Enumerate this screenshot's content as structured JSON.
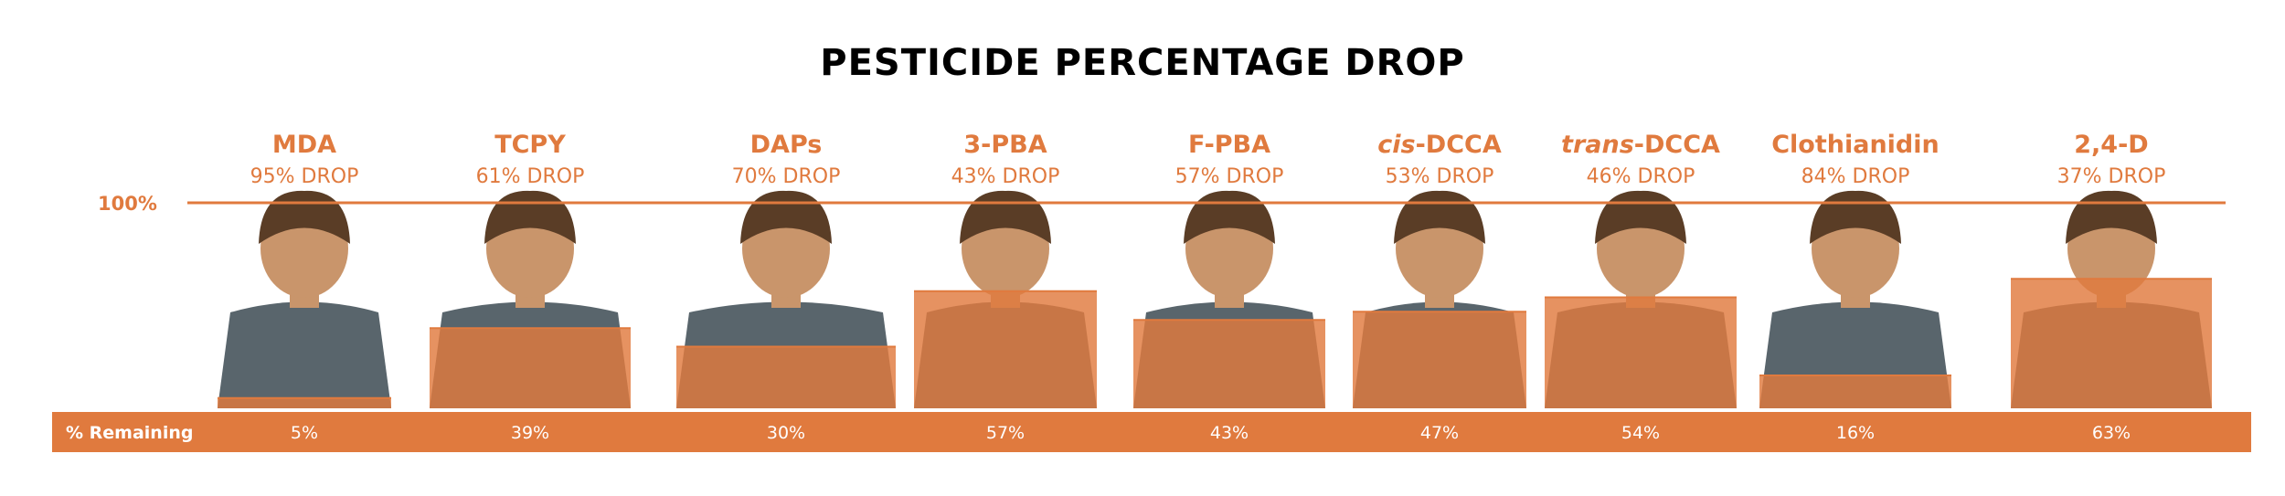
{
  "title": "PESTICIDE PERCENTAGE DROP",
  "colors": {
    "accent": "#e07a3e",
    "line": "#e07a3e",
    "band_text": "#ffffff",
    "skin": "#c9956b",
    "shirt_dark": "#3c4a52",
    "hair": "#5a3d26"
  },
  "chart_data": {
    "type": "bar",
    "title": "PESTICIDE PERCENTAGE DROP",
    "xlabel": "",
    "ylabel": "",
    "y_reference_label": "100%",
    "remaining_row_label": "% Remaining",
    "ylim": [
      0,
      100
    ],
    "categories": [
      {
        "name": "MDA",
        "italic_prefix": "",
        "drop_label": "95% DROP",
        "drop": 95,
        "remaining_label": "5%",
        "remaining": 5
      },
      {
        "name": "TCPY",
        "italic_prefix": "",
        "drop_label": "61% DROP",
        "drop": 61,
        "remaining_label": "39%",
        "remaining": 39
      },
      {
        "name": "DAPs",
        "italic_prefix": "",
        "drop_label": "70% DROP",
        "drop": 70,
        "remaining_label": "30%",
        "remaining": 30
      },
      {
        "name": "3-PBA",
        "italic_prefix": "",
        "drop_label": "43% DROP",
        "drop": 43,
        "remaining_label": "57%",
        "remaining": 57
      },
      {
        "name": "F-PBA",
        "italic_prefix": "",
        "drop_label": "57% DROP",
        "drop": 57,
        "remaining_label": "43%",
        "remaining": 43
      },
      {
        "name": "-DCCA",
        "italic_prefix": "cis",
        "drop_label": "53% DROP",
        "drop": 53,
        "remaining_label": "47%",
        "remaining": 47
      },
      {
        "name": "-DCCA",
        "italic_prefix": "trans",
        "drop_label": "46% DROP",
        "drop": 46,
        "remaining_label": "54%",
        "remaining": 54
      },
      {
        "name": "Clothianidin",
        "italic_prefix": "",
        "drop_label": "84% DROP",
        "drop": 84,
        "remaining_label": "16%",
        "remaining": 16
      },
      {
        "name": "2,4-D",
        "italic_prefix": "",
        "drop_label": "37% DROP",
        "drop": 37,
        "remaining_label": "63%",
        "remaining": 63
      }
    ]
  }
}
